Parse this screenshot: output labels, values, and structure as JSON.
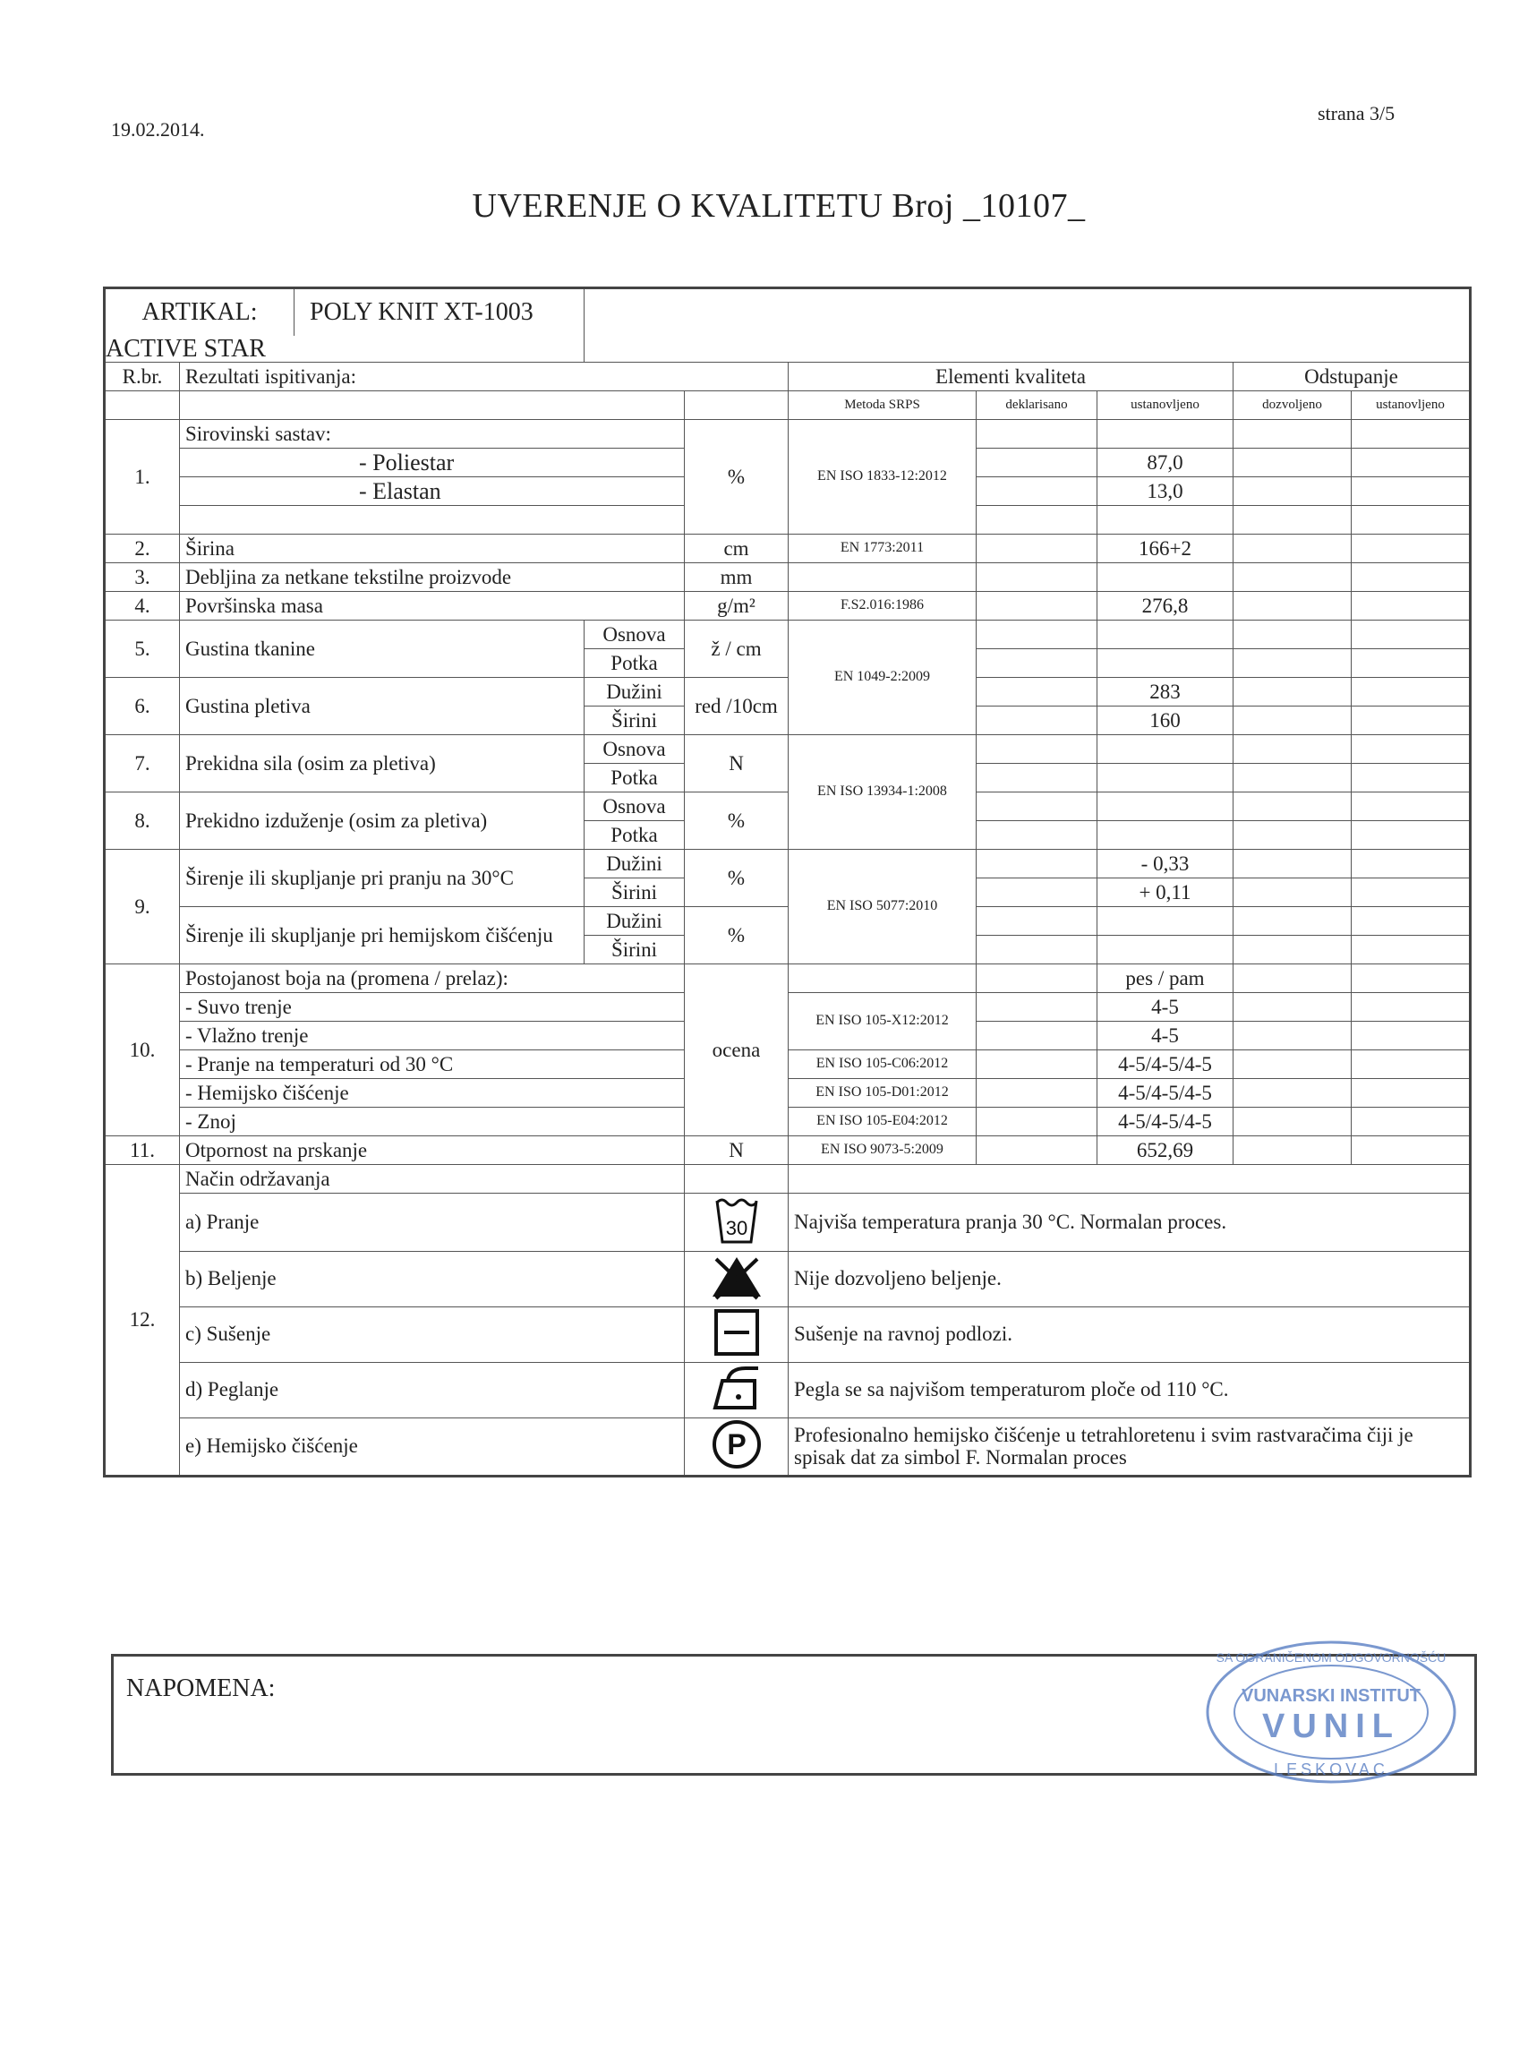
{
  "header": {
    "date": "19.02.2014.",
    "page": "strana 3/5",
    "title": "UVERENJE O KVALITETU  Broj _10107_"
  },
  "article": {
    "label": "ARTIKAL:",
    "value": "POLY KNIT XT-1003 ACTIVE STAR"
  },
  "columns": {
    "rbr": "R.br.",
    "results": "Rezultati ispitivanja:",
    "elements": "Elementi kvaliteta",
    "deviation": "Odstupanje",
    "method": "Metoda SRPS",
    "declared": "deklarisano",
    "established": "ustanovljeno",
    "allowed": "dozvoljeno",
    "established2": "ustanovljeno"
  },
  "rows": {
    "r1": {
      "no": "1.",
      "label": "Sirovinski sastav:",
      "unit": "%",
      "method": "EN ISO 1833-12:2012",
      "items": [
        {
          "label": "- Poliestar",
          "value": "87,0"
        },
        {
          "label": "- Elastan",
          "value": "13,0"
        }
      ]
    },
    "r2": {
      "no": "2.",
      "label": "Širina",
      "unit": "cm",
      "method": "EN 1773:2011",
      "value": "166+2"
    },
    "r3": {
      "no": "3.",
      "label": "Debljina za netkane tekstilne proizvode",
      "unit": "mm"
    },
    "r4": {
      "no": "4.",
      "label": "Površinska masa",
      "unit": "g/m²",
      "method": "F.S2.016:1986",
      "value": "276,8"
    },
    "r5": {
      "no": "5.",
      "label": "Gustina tkanine",
      "sub": [
        "Osnova",
        "Potka"
      ],
      "unit": "ž / cm",
      "method": "EN 1049-2:2009"
    },
    "r6": {
      "no": "6.",
      "label": "Gustina pletiva",
      "sub": [
        "Dužini",
        "Širini"
      ],
      "unit": "red /10cm",
      "values": [
        "283",
        "160"
      ]
    },
    "r7": {
      "no": "7.",
      "label": "Prekidna sila (osim za pletiva)",
      "sub": [
        "Osnova",
        "Potka"
      ],
      "unit": "N",
      "method": "EN ISO 13934-1:2008"
    },
    "r8": {
      "no": "8.",
      "label": "Prekidno izduženje (osim za pletiva)",
      "sub": [
        "Osnova",
        "Potka"
      ],
      "unit": "%"
    },
    "r9": {
      "no": "9.",
      "label_a": "Širenje ili skupljanje pri pranju na 30°C",
      "label_b": "Širenje ili skupljanje pri hemijskom čišćenju",
      "sub": [
        "Dužini",
        "Širini"
      ],
      "unit": "%",
      "method": "EN ISO 5077:2010",
      "values": [
        "- 0,33",
        "+ 0,11"
      ]
    },
    "r10": {
      "no": "10.",
      "label": "Postojanost boja na (promena / prelaz):",
      "unit": "ocena",
      "header_value": "pes / pam",
      "items": [
        {
          "label": "- Suvo trenje",
          "value": "4-5"
        },
        {
          "label": "- Vlažno trenje",
          "value": "4-5"
        },
        {
          "label": "- Pranje na temperaturi od  30 °C",
          "method": "EN ISO 105-C06:2012",
          "value": "4-5/4-5/4-5"
        },
        {
          "label": "- Hemijsko čišćenje",
          "method": "EN ISO 105-D01:2012",
          "value": "4-5/4-5/4-5"
        },
        {
          "label": "- Znoj",
          "method": "EN ISO 105-E04:2012",
          "value": "4-5/4-5/4-5"
        }
      ],
      "rub_method": "EN ISO 105-X12:2012"
    },
    "r11": {
      "no": "11.",
      "label": "Otpornost na prskanje",
      "unit": "N",
      "method": "EN ISO 9073-5:2009",
      "value": "652,69"
    },
    "r12": {
      "no": "12.",
      "label": "Način održavanja",
      "items": [
        {
          "label": "a) Pranje",
          "icon": "wash-30-icon",
          "icon_text": "30",
          "desc": "Najviša temperatura pranja 30 °C. Normalan proces."
        },
        {
          "label": "b) Beljenje",
          "icon": "no-bleach-icon",
          "desc": "Nije dozvoljeno beljenje."
        },
        {
          "label": "c) Sušenje",
          "icon": "flat-dry-icon",
          "desc": "Sušenje na ravnoj podlozi."
        },
        {
          "label": "d) Peglanje",
          "icon": "iron-low-icon",
          "desc": "Pegla se sa najvišom  temperaturom  ploče  od 110 °C."
        },
        {
          "label": "e) Hemijsko čišćenje",
          "icon": "dry-clean-p-icon",
          "icon_text": "P",
          "desc": "Profesionalno hemijsko čišćenje u tetrahloretenu i svim rastvaračima čiji je spisak dat za simbol F. Normalan proces"
        }
      ]
    }
  },
  "note": {
    "label": "NAPOMENA:"
  },
  "stamp": {
    "outer": "DRUŠTVO SA OGRANIČENOM ODGOVORNOŠĆU",
    "inner": "VUNARSKI INSTITUT",
    "name": "VUNIL",
    "city": "LESKOVAC",
    "color": "#5a7fc4"
  }
}
